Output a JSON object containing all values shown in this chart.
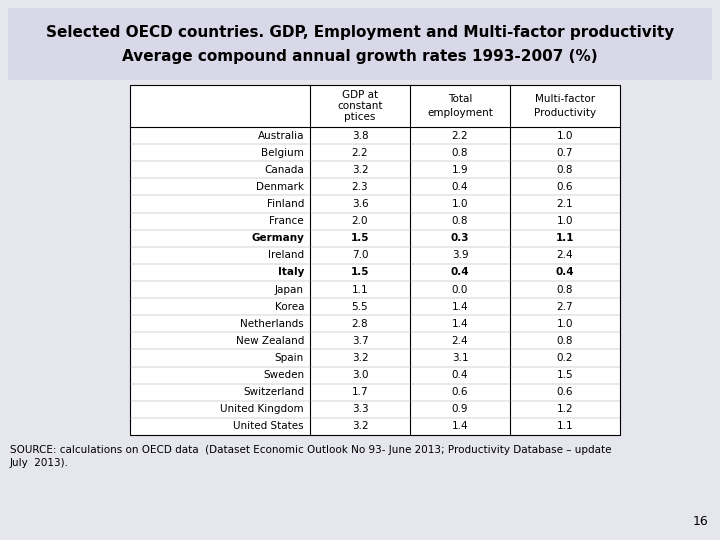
{
  "title_line1": "Selected OECD countries. GDP, Employment and Multi-factor productivity",
  "title_line2": "Average compound annual growth rates 1993-2007 (%)",
  "countries": [
    "Australia",
    "Belgium",
    "Canada",
    "Denmark",
    "Finland",
    "France",
    "Germany",
    "Ireland",
    "Italy",
    "Japan",
    "Korea",
    "Netherlands",
    "New Zealand",
    "Spain",
    "Sweden",
    "Switzerland",
    "United Kingdom",
    "United States"
  ],
  "bold_countries": [
    "Germany",
    "Italy"
  ],
  "gdp": [
    3.8,
    2.2,
    3.2,
    2.3,
    3.6,
    2.0,
    1.5,
    7.0,
    1.5,
    1.1,
    5.5,
    2.8,
    3.7,
    3.2,
    3.0,
    1.7,
    3.3,
    3.2
  ],
  "employment": [
    2.2,
    0.8,
    1.9,
    0.4,
    1.0,
    0.8,
    0.3,
    3.9,
    0.4,
    0.0,
    1.4,
    1.4,
    2.4,
    3.1,
    0.4,
    0.6,
    0.9,
    1.4
  ],
  "mfp": [
    1.0,
    0.7,
    0.8,
    0.6,
    2.1,
    1.0,
    1.1,
    2.4,
    0.4,
    0.8,
    2.7,
    1.0,
    0.8,
    0.2,
    1.5,
    0.6,
    1.2,
    1.1
  ],
  "source_text": "SOURCE: calculations on OECD data  (Dataset Economic Outlook No 93- June 2013; Productivity Database – update\nJuly  2013).",
  "page_number": "16",
  "bg_color": "#e6e6ee",
  "table_bg": "#ffffff",
  "title_bg": "#d8d8e8"
}
